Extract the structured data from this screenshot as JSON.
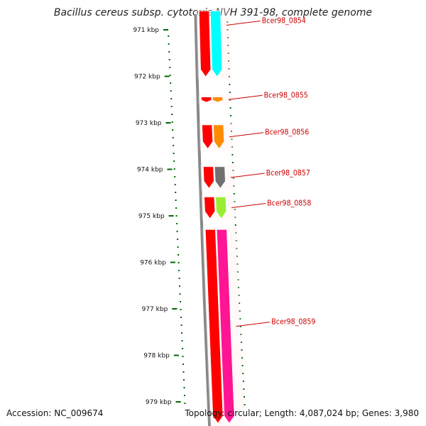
{
  "title": "Bacillus cereus subsp. cytotoxis NVH 391-98, complete genome",
  "accession": "Accession: NC_009674",
  "topology": "Topology: circular; Length: 4,087,024 bp; Genes: 3,980",
  "colors": {
    "forward_gene": "#ff0000",
    "backbone": "#888888",
    "label": "#cc0000",
    "gc_tick": "#006600"
  },
  "kbp_ticks": [
    {
      "label": "971 kbp",
      "kbp": 971
    },
    {
      "label": "972 kbp",
      "kbp": 972
    },
    {
      "label": "973 kbp",
      "kbp": 973
    },
    {
      "label": "974 kbp",
      "kbp": 974
    },
    {
      "label": "975 kbp",
      "kbp": 975
    },
    {
      "label": "976 kbp",
      "kbp": 976
    },
    {
      "label": "977 kbp",
      "kbp": 977
    },
    {
      "label": "978 kbp",
      "kbp": 978
    },
    {
      "label": "979 kbp",
      "kbp": 979
    }
  ],
  "genes": [
    {
      "name": "Bcer98_0854",
      "start_kbp": 970.55,
      "end_kbp": 972.05,
      "cds_color": "#00ffff"
    },
    {
      "name": "Bcer98_0855",
      "start_kbp": 972.4,
      "end_kbp": 972.6,
      "cds_color": "#ff8c00"
    },
    {
      "name": "Bcer98_0856",
      "start_kbp": 973.0,
      "end_kbp": 973.6,
      "cds_color": "#ff8c00"
    },
    {
      "name": "Bcer98_0857",
      "start_kbp": 973.9,
      "end_kbp": 974.45,
      "cds_color": "#707070"
    },
    {
      "name": "Bcer98_0858",
      "start_kbp": 974.55,
      "end_kbp": 975.1,
      "cds_color": "#99ee33"
    },
    {
      "name": "Bcer98_0859",
      "start_kbp": 975.25,
      "end_kbp": 979.5,
      "cds_color": "#ff1493"
    }
  ]
}
